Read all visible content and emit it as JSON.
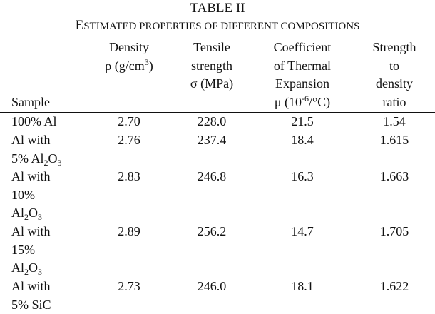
{
  "caption": {
    "number": "TABLE II",
    "title_first": "E",
    "title_rest": "STIMATED PROPERTIES OF DIFFERENT COMPOSITIONS"
  },
  "headers": {
    "sample": "Sample",
    "density": {
      "line1": "Density",
      "line2_pre": "ρ (g/cm",
      "line2_sup": "3",
      "line2_post": ")"
    },
    "tensile": {
      "line1": "Tensile",
      "line2": "strength",
      "line3": "σ (MPa)"
    },
    "cte": {
      "line1": "Coefficient",
      "line2": "of Thermal",
      "line3": "Expansion",
      "line4_pre": "μ (10",
      "line4_sup": "-6",
      "line4_post": "/°C)"
    },
    "ratio": {
      "line1": "Strength",
      "line2": "to",
      "line3": "density",
      "line4": "ratio"
    }
  },
  "rows": [
    {
      "sample_lines": [
        "100% Al"
      ],
      "density": "2.70",
      "tensile": "228.0",
      "cte": "21.5",
      "ratio": "1.54"
    },
    {
      "sample_lines": [
        "Al with",
        "5% Al2O3"
      ],
      "density": "2.76",
      "tensile": "237.4",
      "cte": "18.4",
      "ratio": "1.615"
    },
    {
      "sample_lines": [
        "Al with",
        "10%",
        "Al2O3"
      ],
      "density": "2.83",
      "tensile": "246.8",
      "cte": "16.3",
      "ratio": "1.663"
    },
    {
      "sample_lines": [
        "Al with",
        "15%",
        "Al2O3"
      ],
      "density": "2.89",
      "tensile": "256.2",
      "cte": "14.7",
      "ratio": "1.705"
    },
    {
      "sample_lines": [
        "Al with",
        "5% SiC"
      ],
      "density": "2.73",
      "tensile": "246.0",
      "cte": "18.1",
      "ratio": "1.622"
    }
  ],
  "formula_parts": {
    "al": "Al",
    "two": "2",
    "o": "O",
    "three": "3",
    "pct5": "5% "
  }
}
